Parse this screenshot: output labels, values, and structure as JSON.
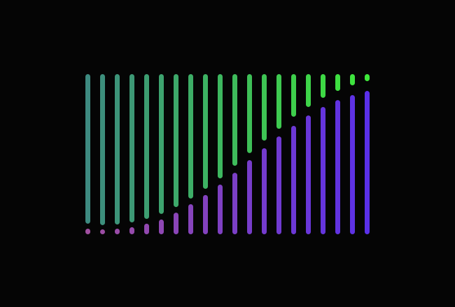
{
  "chart_data": {
    "type": "dual-bar",
    "categories": [
      null,
      null,
      null,
      null,
      null,
      null,
      null,
      null,
      null,
      null,
      null,
      null,
      null,
      null,
      null,
      null,
      null,
      null,
      null,
      null
    ],
    "ylim": [
      0,
      100
    ],
    "series": [
      {
        "anchor": "bottom",
        "color": [
          "#a04fa0",
          "#5a30e8"
        ],
        "values": [
          3.5,
          2.6,
          3.5,
          4.4,
          6.6,
          9.2,
          13.5,
          18.8,
          24.5,
          31,
          38.4,
          46.3,
          53.7,
          61.1,
          67.7,
          74.2,
          79.5,
          83.8,
          86.9,
          89.5
        ]
      },
      {
        "anchor": "top",
        "color": [
          "#3d8a80",
          "#3ee83a"
        ],
        "values": [
          93.4,
          94.3,
          93.9,
          92.6,
          90.4,
          87.3,
          83,
          77.7,
          71.6,
          65.1,
          57.2,
          49.3,
          41.5,
          34.1,
          26.6,
          20.5,
          14.8,
          10.5,
          7,
          4.4
        ]
      }
    ]
  }
}
